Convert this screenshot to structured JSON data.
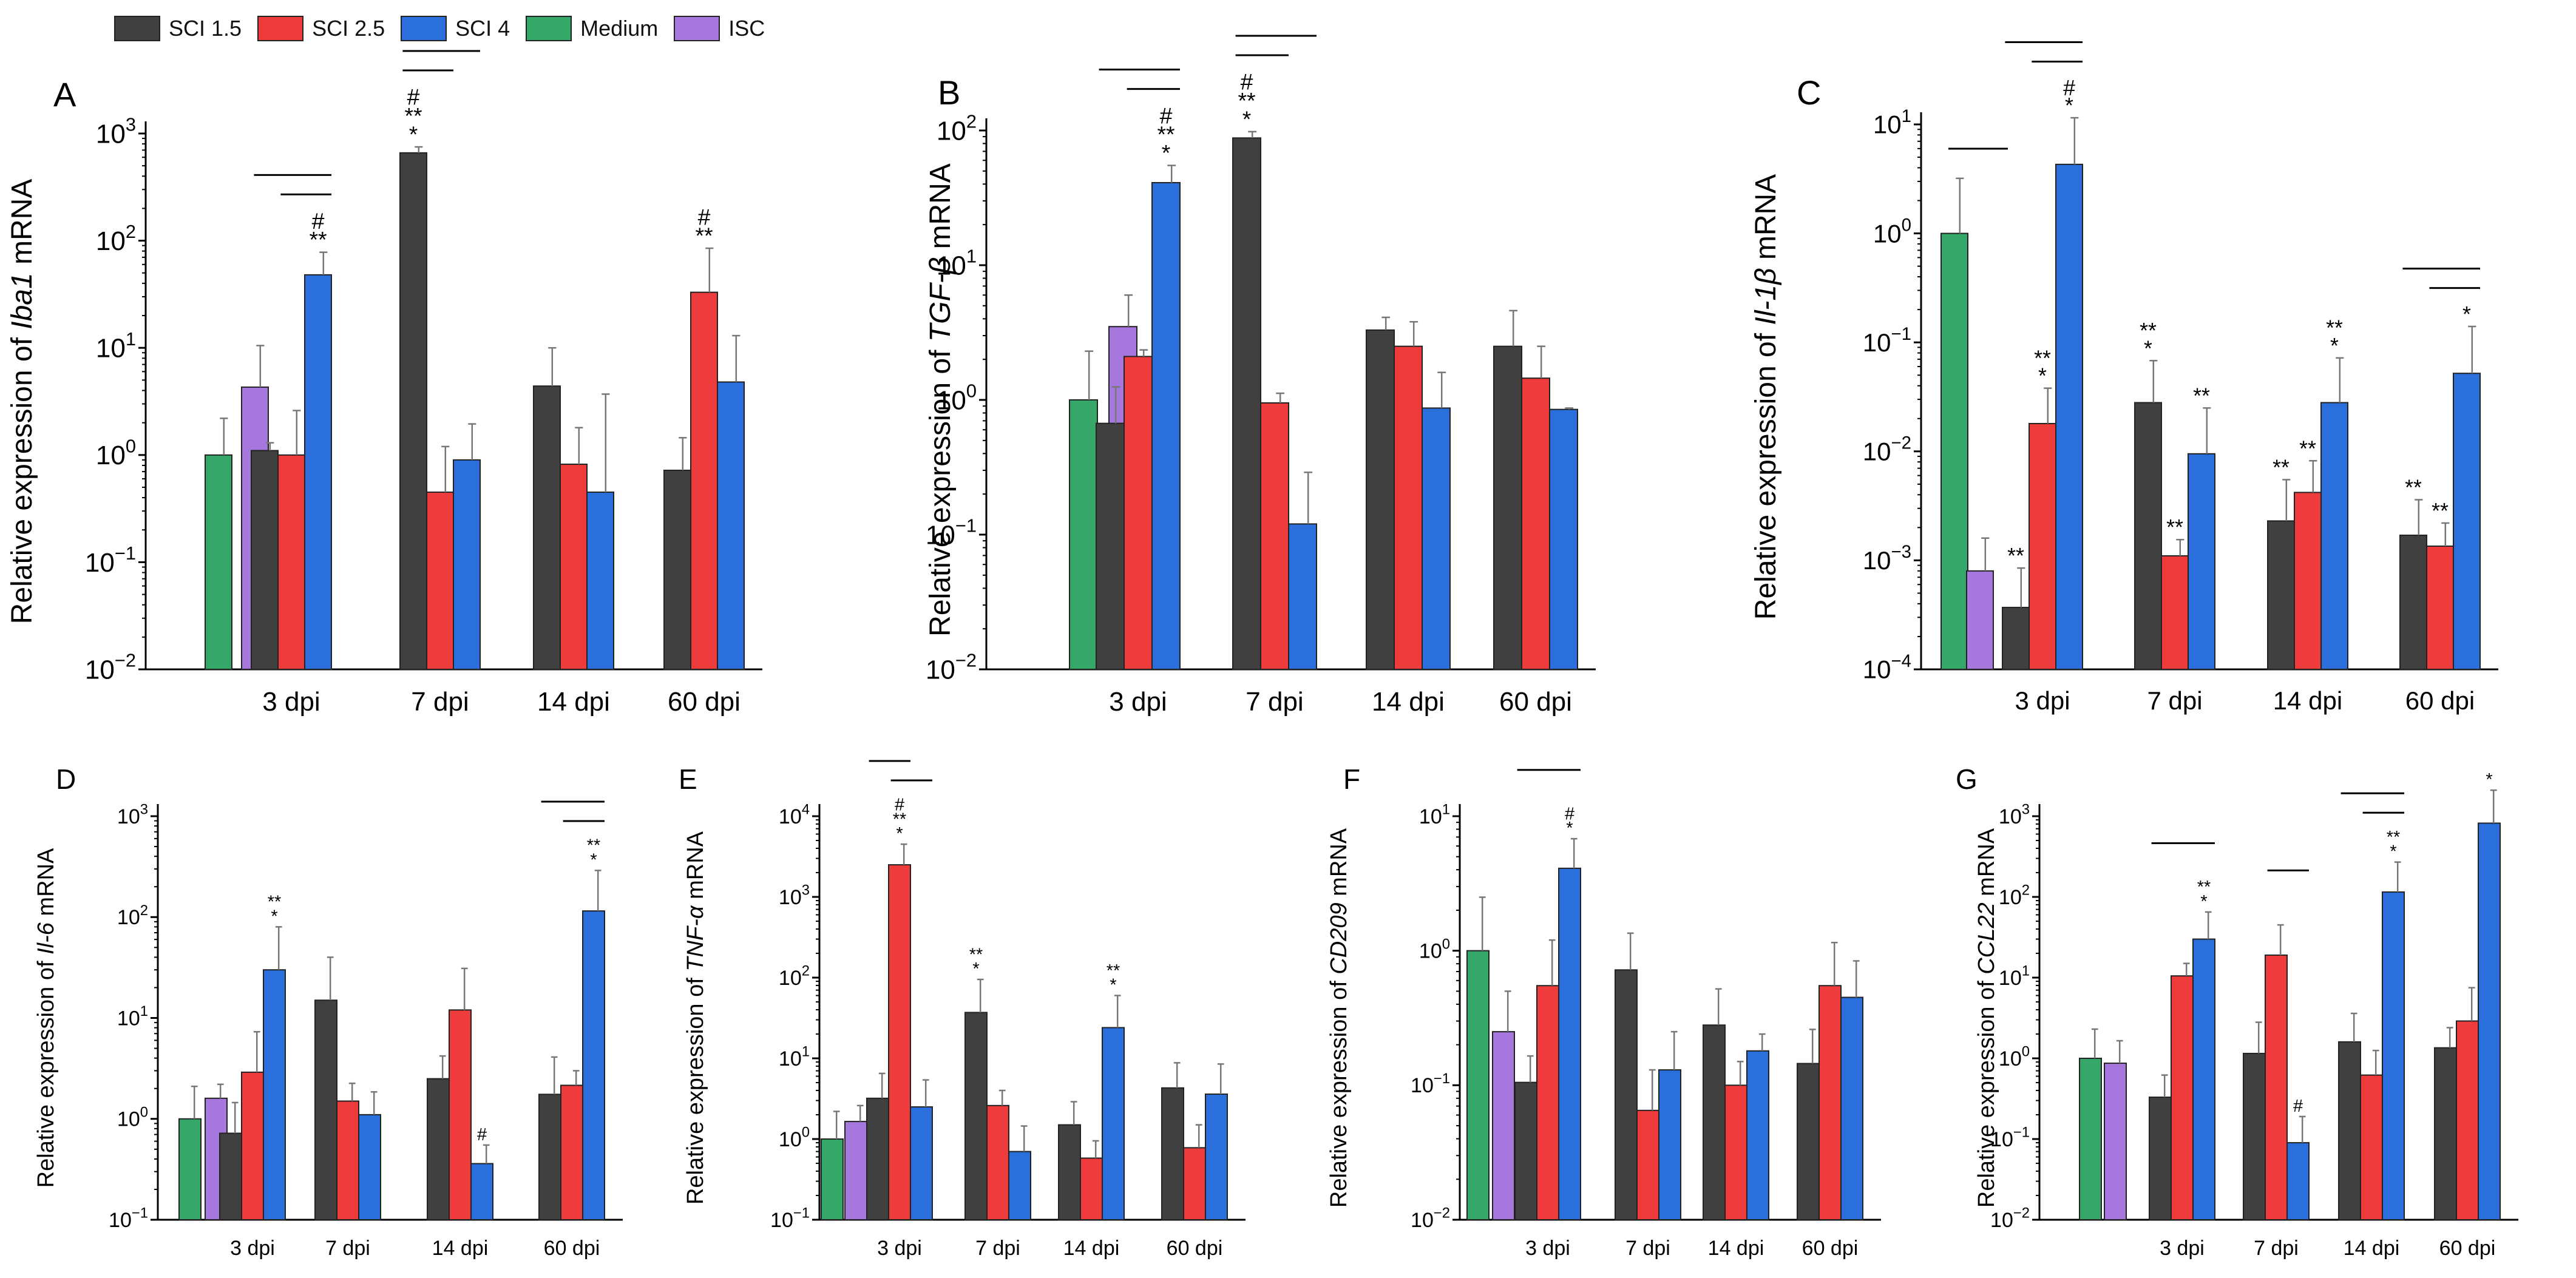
{
  "legend": [
    {
      "label": "SCI 1.5",
      "color": "#404040"
    },
    {
      "label": "SCI 2.5",
      "color": "#ee3b3b"
    },
    {
      "label": "SCI 4",
      "color": "#2a6fdc"
    },
    {
      "label": "Medium",
      "color": "#35a869"
    },
    {
      "label": "ISC",
      "color": "#a678dd"
    }
  ],
  "chart_data": [
    {
      "panel": "A",
      "type": "bar",
      "yscale": "log",
      "ylabel_pre": "Relative expression of ",
      "ylabel_italic": "Iba1",
      "ylabel_post": " mRNA",
      "ylim_exp": [
        -2,
        3
      ],
      "ticks": [
        {
          "b": "10",
          "e": "−2"
        },
        {
          "b": "10",
          "e": "−1"
        },
        {
          "b": "10",
          "e": "0"
        },
        {
          "b": "10",
          "e": "1"
        },
        {
          "b": "10",
          "e": "2"
        },
        {
          "b": "10",
          "e": "3"
        }
      ],
      "categories": [
        "3 dpi",
        "7 dpi",
        "14 dpi",
        "60 dpi"
      ],
      "controls": [
        {
          "name": "Medium",
          "value": 1.0,
          "err": 2.2
        },
        {
          "name": "ISC",
          "value": 4.3,
          "err": 10.5
        }
      ],
      "series": [
        {
          "name": "SCI 1.5",
          "values": [
            1.1,
            660,
            4.4,
            0.72
          ],
          "errors": [
            1.3,
            750,
            10.0,
            1.45
          ]
        },
        {
          "name": "SCI 2.5",
          "values": [
            1.0,
            0.45,
            0.82,
            33
          ],
          "errors": [
            2.6,
            1.2,
            1.8,
            85
          ]
        },
        {
          "name": "SCI 4",
          "values": [
            48,
            0.9,
            0.45,
            4.8
          ],
          "errors": [
            78,
            1.95,
            3.7,
            13
          ]
        }
      ],
      "annotations": [
        {
          "cat": 0,
          "s": 2,
          "lines": [
            "#",
            "**"
          ]
        },
        {
          "cat": 1,
          "s": 0,
          "lines": [
            "#",
            "**",
            "*"
          ]
        },
        {
          "cat": 3,
          "s": 1,
          "lines": [
            "#",
            "**"
          ]
        }
      ],
      "brackets": [
        {
          "cat": 0,
          "from": 0,
          "to": 2,
          "level": 0
        },
        {
          "cat": 0,
          "from": 1,
          "to": 2,
          "level": 1
        },
        {
          "cat": 1,
          "from": 0,
          "to": 2,
          "level": 0
        },
        {
          "cat": 1,
          "from": 0,
          "to": 1,
          "level": 1
        }
      ]
    },
    {
      "panel": "B",
      "type": "bar",
      "yscale": "log",
      "ylabel_pre": "Relative expression of ",
      "ylabel_italic": "TGF-β",
      "ylabel_post": " mRNA",
      "ylim_exp": [
        -2,
        2
      ],
      "ticks": [
        {
          "b": "10",
          "e": "−2"
        },
        {
          "b": "10",
          "e": "−1"
        },
        {
          "b": "10",
          "e": "0"
        },
        {
          "b": "10",
          "e": "1"
        },
        {
          "b": "10",
          "e": "2"
        }
      ],
      "categories": [
        "3 dpi",
        "7 dpi",
        "14 dpi",
        "60 dpi"
      ],
      "controls": [
        {
          "name": "Medium",
          "value": 1.0,
          "err": 2.3
        },
        {
          "name": "ISC",
          "value": 3.5,
          "err": 6.0
        }
      ],
      "series": [
        {
          "name": "SCI 1.5",
          "values": [
            0.67,
            88,
            3.3,
            2.5
          ],
          "errors": [
            1.25,
            98,
            4.1,
            4.6
          ]
        },
        {
          "name": "SCI 2.5",
          "values": [
            2.1,
            0.95,
            2.5,
            1.45
          ],
          "errors": [
            2.35,
            1.12,
            3.8,
            2.5
          ]
        },
        {
          "name": "SCI 4",
          "values": [
            41,
            0.12,
            0.87,
            0.85
          ],
          "errors": [
            55,
            0.29,
            1.6,
            0.87
          ]
        }
      ],
      "annotations": [
        {
          "cat": 0,
          "s": 2,
          "lines": [
            "#",
            "**",
            "*"
          ]
        },
        {
          "cat": 1,
          "s": 0,
          "lines": [
            "#",
            "**",
            "*"
          ]
        }
      ],
      "brackets": [
        {
          "cat": 0,
          "from": 0,
          "to": 2,
          "level": 0
        },
        {
          "cat": 0,
          "from": 1,
          "to": 2,
          "level": 1
        },
        {
          "cat": 1,
          "from": 0,
          "to": 2,
          "level": 0
        },
        {
          "cat": 1,
          "from": 0,
          "to": 1,
          "level": 1
        }
      ]
    },
    {
      "panel": "C",
      "type": "bar",
      "yscale": "log",
      "ylabel_pre": "Relative expression of ",
      "ylabel_italic": "Il-1β",
      "ylabel_post": " mRNA",
      "ylim_exp": [
        -4,
        1
      ],
      "ticks": [
        {
          "b": "10",
          "e": "−4"
        },
        {
          "b": "10",
          "e": "−3"
        },
        {
          "b": "10",
          "e": "−2"
        },
        {
          "b": "10",
          "e": "−1"
        },
        {
          "b": "10",
          "e": "0"
        },
        {
          "b": "10",
          "e": "1"
        }
      ],
      "categories": [
        "3 dpi",
        "7 dpi",
        "14 dpi",
        "60 dpi"
      ],
      "controls": [
        {
          "name": "Medium",
          "value": 1.0,
          "err": 3.2
        },
        {
          "name": "ISC",
          "value": 0.0008,
          "err": 0.0016
        }
      ],
      "series": [
        {
          "name": "SCI 1.5",
          "values": [
            0.00037,
            0.028,
            0.0023,
            0.0017
          ],
          "errors": [
            0.00085,
            0.068,
            0.0055,
            0.0036
          ]
        },
        {
          "name": "SCI 2.5",
          "values": [
            0.018,
            0.0011,
            0.0042,
            0.00135
          ],
          "errors": [
            0.038,
            0.00155,
            0.0082,
            0.0022
          ]
        },
        {
          "name": "SCI 4",
          "values": [
            4.3,
            0.0095,
            0.028,
            0.052
          ],
          "errors": [
            11.5,
            0.025,
            0.072,
            0.14
          ]
        }
      ],
      "annotations": [
        {
          "cat": 0,
          "s": 0,
          "lines": [
            "**"
          ]
        },
        {
          "cat": 0,
          "s": 1,
          "lines": [
            "**",
            "*"
          ]
        },
        {
          "cat": 0,
          "s": 2,
          "lines": [
            "#",
            "*"
          ]
        },
        {
          "cat": 1,
          "s": 0,
          "lines": [
            "**",
            "*"
          ]
        },
        {
          "cat": 1,
          "s": 1,
          "lines": [
            "**"
          ]
        },
        {
          "cat": 1,
          "s": 2,
          "lines": [
            "**"
          ]
        },
        {
          "cat": 2,
          "s": 0,
          "lines": [
            "**"
          ]
        },
        {
          "cat": 2,
          "s": 1,
          "lines": [
            "**"
          ]
        },
        {
          "cat": 2,
          "s": 2,
          "lines": [
            "**",
            "*"
          ]
        },
        {
          "cat": 3,
          "s": 0,
          "lines": [
            "**"
          ]
        },
        {
          "cat": 3,
          "s": 1,
          "lines": [
            "**"
          ]
        },
        {
          "cat": 3,
          "s": 2,
          "lines": [
            "*"
          ]
        }
      ],
      "brackets": [
        {
          "cat": -1,
          "from": 0,
          "to": 0,
          "level": 0,
          "y_frac": 0.87
        },
        {
          "cat": 0,
          "from": 0,
          "to": 2,
          "level": 0
        },
        {
          "cat": 0,
          "from": 1,
          "to": 2,
          "level": 1
        },
        {
          "cat": 3,
          "from": 0,
          "to": 2,
          "level": 0
        },
        {
          "cat": 3,
          "from": 1,
          "to": 2,
          "level": 1
        }
      ]
    },
    {
      "panel": "D",
      "type": "bar",
      "yscale": "log",
      "ylabel_pre": "Relative expression of ",
      "ylabel_italic": "Il-6",
      "ylabel_post": " mRNA",
      "ylim_exp": [
        -1,
        3
      ],
      "ticks": [
        {
          "b": "10",
          "e": "−1"
        },
        {
          "b": "10",
          "e": "0"
        },
        {
          "b": "10",
          "e": "1"
        },
        {
          "b": "10",
          "e": "2"
        },
        {
          "b": "10",
          "e": "3"
        }
      ],
      "categories": [
        "3 dpi",
        "7 dpi",
        "14 dpi",
        "60 dpi"
      ],
      "controls": [
        {
          "name": "Medium",
          "value": 1.0,
          "err": 2.1
        },
        {
          "name": "ISC",
          "value": 1.6,
          "err": 2.2
        }
      ],
      "series": [
        {
          "name": "SCI 1.5",
          "values": [
            0.72,
            15,
            2.5,
            1.75
          ],
          "errors": [
            1.45,
            40,
            4.2,
            4.1
          ]
        },
        {
          "name": "SCI 2.5",
          "values": [
            2.9,
            1.5,
            12,
            2.15
          ],
          "errors": [
            7.3,
            2.25,
            31,
            3.0
          ]
        },
        {
          "name": "SCI 4",
          "values": [
            30,
            1.1,
            0.36,
            115
          ],
          "errors": [
            80,
            1.85,
            0.55,
            290
          ]
        }
      ],
      "annotations": [
        {
          "cat": 0,
          "s": 2,
          "lines": [
            "**",
            "*"
          ]
        },
        {
          "cat": 2,
          "s": 2,
          "lines": [
            "#"
          ]
        },
        {
          "cat": 3,
          "s": 2,
          "lines": [
            "**",
            "*"
          ]
        }
      ],
      "brackets": [
        {
          "cat": 3,
          "from": 0,
          "to": 2,
          "level": 0
        },
        {
          "cat": 3,
          "from": 1,
          "to": 2,
          "level": 1
        }
      ]
    },
    {
      "panel": "E",
      "type": "bar",
      "yscale": "log",
      "ylabel_pre": "Relative expression of ",
      "ylabel_italic": "TNF-α",
      "ylabel_post": " mRNA",
      "ylim_exp": [
        -1,
        4
      ],
      "ticks": [
        {
          "b": "10",
          "e": "−1"
        },
        {
          "b": "10",
          "e": "0"
        },
        {
          "b": "10",
          "e": "1"
        },
        {
          "b": "10",
          "e": "2"
        },
        {
          "b": "10",
          "e": "3"
        },
        {
          "b": "10",
          "e": "4"
        }
      ],
      "categories": [
        "3 dpi",
        "7 dpi",
        "14 dpi",
        "60 dpi"
      ],
      "controls": [
        {
          "name": "Medium",
          "value": 1.0,
          "err": 2.2
        },
        {
          "name": "ISC",
          "value": 1.65,
          "err": 2.6
        }
      ],
      "series": [
        {
          "name": "SCI 1.5",
          "values": [
            3.2,
            37,
            1.5,
            4.3
          ],
          "errors": [
            6.5,
            95,
            2.9,
            8.8
          ]
        },
        {
          "name": "SCI 2.5",
          "values": [
            2500,
            2.6,
            0.58,
            0.78
          ],
          "errors": [
            4500,
            4.0,
            0.95,
            1.5
          ]
        },
        {
          "name": "SCI 4",
          "values": [
            2.5,
            0.7,
            24,
            3.6
          ],
          "errors": [
            5.4,
            1.45,
            60,
            8.5
          ]
        }
      ],
      "annotations": [
        {
          "cat": 0,
          "s": 1,
          "lines": [
            "#",
            "**",
            "*"
          ]
        },
        {
          "cat": 1,
          "s": 0,
          "lines": [
            "**",
            "*"
          ]
        },
        {
          "cat": 2,
          "s": 2,
          "lines": [
            "**",
            "*"
          ]
        }
      ],
      "brackets": [
        {
          "cat": 0,
          "from": 0,
          "to": 1,
          "level": 0
        },
        {
          "cat": 0,
          "from": 1,
          "to": 2,
          "level": 1
        }
      ]
    },
    {
      "panel": "F",
      "type": "bar",
      "yscale": "log",
      "ylabel_pre": "Relative expression of ",
      "ylabel_italic": "CD209",
      "ylabel_post": " mRNA",
      "ylim_exp": [
        -2,
        1
      ],
      "ticks": [
        {
          "b": "10",
          "e": "−2"
        },
        {
          "b": "10",
          "e": "−1"
        },
        {
          "b": "10",
          "e": "0"
        },
        {
          "b": "10",
          "e": "1"
        }
      ],
      "categories": [
        "3 dpi",
        "7 dpi",
        "14 dpi",
        "60 dpi"
      ],
      "controls": [
        {
          "name": "Medium",
          "value": 1.0,
          "err": 2.5
        },
        {
          "name": "ISC",
          "value": 0.25,
          "err": 0.5
        }
      ],
      "series": [
        {
          "name": "SCI 1.5",
          "values": [
            0.105,
            0.72,
            0.28,
            0.145
          ],
          "errors": [
            0.165,
            1.35,
            0.52,
            0.26
          ]
        },
        {
          "name": "SCI 2.5",
          "values": [
            0.55,
            0.065,
            0.1,
            0.55
          ],
          "errors": [
            1.2,
            0.13,
            0.15,
            1.15
          ]
        },
        {
          "name": "SCI 4",
          "values": [
            4.1,
            0.13,
            0.18,
            0.45
          ],
          "errors": [
            6.8,
            0.25,
            0.24,
            0.84
          ]
        }
      ],
      "annotations": [
        {
          "cat": 0,
          "s": 2,
          "lines": [
            "#",
            "*"
          ]
        }
      ],
      "brackets": [
        {
          "cat": 0,
          "from": 0,
          "to": 2,
          "level": 0
        }
      ]
    },
    {
      "panel": "G",
      "type": "bar",
      "yscale": "log",
      "ylabel_pre": "Relative expression of ",
      "ylabel_italic": "CCL22",
      "ylabel_post": " mRNA",
      "ylim_exp": [
        -2,
        3
      ],
      "ticks": [
        {
          "b": "10",
          "e": "−2"
        },
        {
          "b": "10",
          "e": "−1"
        },
        {
          "b": "10",
          "e": "0"
        },
        {
          "b": "10",
          "e": "1"
        },
        {
          "b": "10",
          "e": "2"
        },
        {
          "b": "10",
          "e": "3"
        }
      ],
      "categories": [
        "3 dpi",
        "7 dpi",
        "14 dpi",
        "60 dpi"
      ],
      "controls": [
        {
          "name": "Medium",
          "value": 1.0,
          "err": 2.3
        },
        {
          "name": "ISC",
          "value": 0.87,
          "err": 1.65
        }
      ],
      "series": [
        {
          "name": "SCI 1.5",
          "values": [
            0.33,
            1.15,
            1.6,
            1.35
          ],
          "errors": [
            0.62,
            2.8,
            3.6,
            2.4
          ]
        },
        {
          "name": "SCI 2.5",
          "values": [
            10.5,
            19,
            0.62,
            2.9
          ],
          "errors": [
            15,
            45,
            1.25,
            7.5
          ]
        },
        {
          "name": "SCI 4",
          "values": [
            30,
            0.09,
            115,
            820
          ],
          "errors": [
            65,
            0.19,
            270,
            2100
          ]
        }
      ],
      "annotations": [
        {
          "cat": 0,
          "s": 2,
          "lines": [
            "**",
            "*"
          ]
        },
        {
          "cat": 1,
          "s": 2,
          "lines": [
            "#"
          ]
        },
        {
          "cat": 2,
          "s": 2,
          "lines": [
            "**",
            "*"
          ]
        },
        {
          "cat": 3,
          "s": 2,
          "lines": [
            "*"
          ]
        }
      ],
      "brackets": [
        {
          "cat": 0,
          "from": 0,
          "to": 2,
          "level": 0
        },
        {
          "cat": 1,
          "from": 1,
          "to": 2,
          "level": 0
        },
        {
          "cat": 2,
          "from": 0,
          "to": 2,
          "level": 0
        },
        {
          "cat": 2,
          "from": 1,
          "to": 2,
          "level": 1
        }
      ]
    }
  ]
}
